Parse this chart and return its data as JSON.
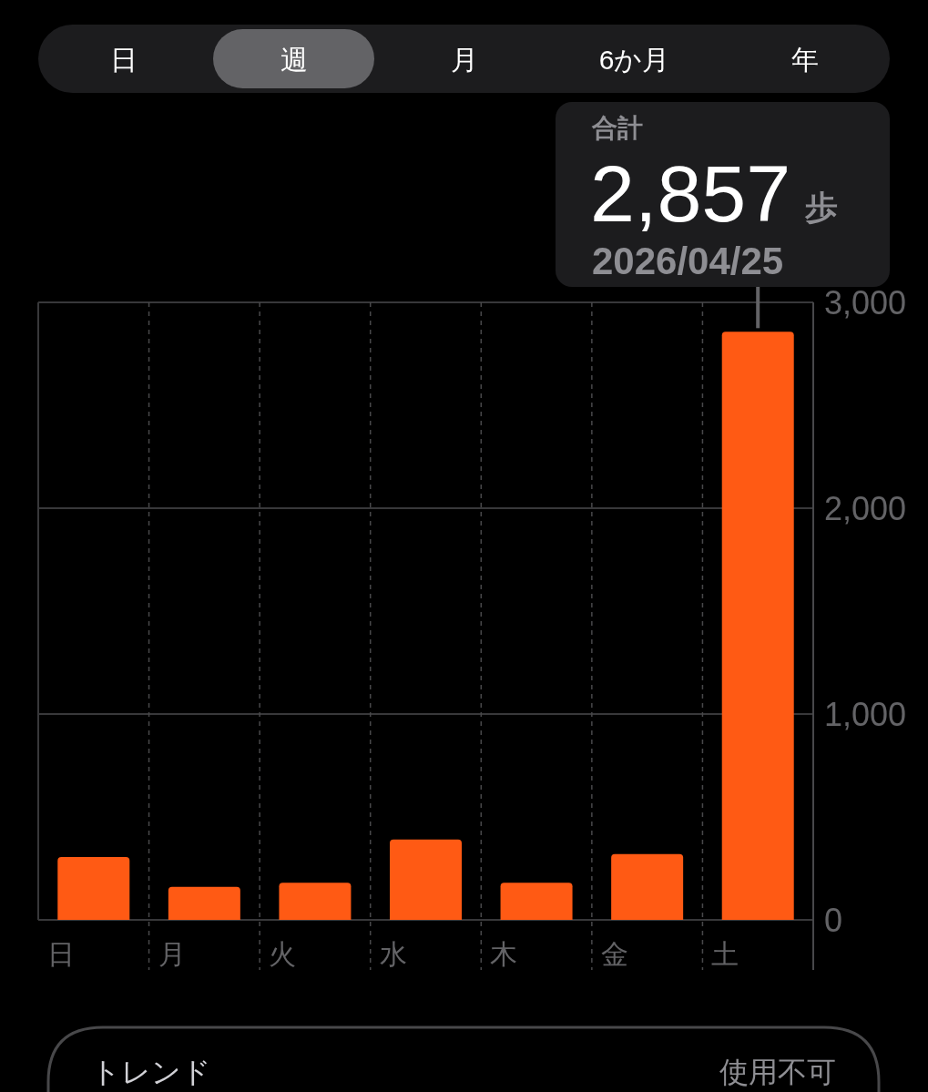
{
  "chart_data": {
    "type": "bar",
    "categories": [
      "日",
      "月",
      "火",
      "水",
      "木",
      "金",
      "土"
    ],
    "values": [
      305,
      160,
      180,
      390,
      180,
      320,
      2857
    ],
    "color": "#ff5a14",
    "ylim": [
      0,
      3000
    ],
    "yticks": [
      0,
      {
        "value": 1000,
        "label": "1,000"
      },
      {
        "value": 2000,
        "label": "2,000"
      },
      {
        "value": 3000,
        "label": "3,000"
      }
    ],
    "grid": true,
    "annotations": [
      "日",
      "週",
      "月",
      "6か月",
      "年",
      "合計",
      {
        "text": "2,857",
        "x": "土",
        "y": 2857
      },
      "歩",
      "2026/04/25",
      "トレンド",
      "使用不可"
    ]
  }
}
